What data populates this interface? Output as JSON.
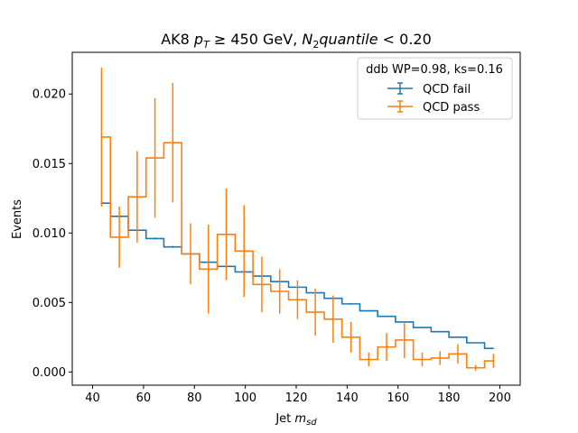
{
  "chart_data": {
    "type": "line",
    "drawstyle": "steps-mid",
    "title_prefix": "AK8 ",
    "title_pt": "p",
    "title_pt_sub": "T",
    "title_middle": " ≥ 450 GeV, ",
    "title_n": "N",
    "title_n_sub": "2",
    "title_quantile": "quantile",
    "title_suffix": " < 0.20",
    "xlabel_main": "Jet ",
    "xlabel_var": "m",
    "xlabel_sub": "sd",
    "ylabel": "Events",
    "xlim": [
      32.0,
      208.0
    ],
    "ylim": [
      -0.00095,
      0.023
    ],
    "xticks": [
      40,
      60,
      80,
      100,
      120,
      140,
      160,
      180,
      200
    ],
    "xtick_labels": [
      "40",
      "60",
      "80",
      "100",
      "120",
      "140",
      "160",
      "180",
      "200"
    ],
    "yticks": [
      0.0,
      0.005,
      0.01,
      0.015,
      0.02
    ],
    "ytick_labels": [
      "0.000",
      "0.005",
      "0.010",
      "0.015",
      "0.020"
    ],
    "legend": {
      "title": "ddb WP=0.98, ks=0.16",
      "placement": "upper right"
    },
    "x": [
      43.5,
      50.5,
      57.5,
      64.5,
      71.5,
      78.5,
      85.5,
      92.5,
      99.5,
      106.5,
      113.5,
      120.5,
      127.5,
      134.5,
      141.5,
      148.5,
      155.5,
      162.5,
      169.5,
      176.5,
      183.5,
      190.5,
      197.5
    ],
    "series": [
      {
        "name": "QCD fail",
        "color": "#1f77b4",
        "values": [
          0.01215,
          0.0112,
          0.0102,
          0.0096,
          0.009,
          0.0085,
          0.0079,
          0.0076,
          0.0072,
          0.0069,
          0.0065,
          0.0061,
          0.0057,
          0.0053,
          0.0049,
          0.0044,
          0.004,
          0.0036,
          0.0032,
          0.0029,
          0.0025,
          0.0021,
          0.0017
        ],
        "errors": [
          8e-05,
          8e-05,
          8e-05,
          7e-05,
          7e-05,
          7e-05,
          6e-05,
          6e-05,
          6e-05,
          6e-05,
          6e-05,
          5e-05,
          5e-05,
          5e-05,
          5e-05,
          5e-05,
          4e-05,
          4e-05,
          4e-05,
          4e-05,
          4e-05,
          3e-05,
          3e-05
        ]
      },
      {
        "name": "QCD pass",
        "color": "#ff7f0e",
        "values": [
          0.0169,
          0.0097,
          0.0126,
          0.0154,
          0.0165,
          0.0085,
          0.0074,
          0.0099,
          0.0087,
          0.0063,
          0.0058,
          0.0052,
          0.0043,
          0.0038,
          0.0025,
          0.0009,
          0.0018,
          0.0023,
          0.0009,
          0.001,
          0.0013,
          0.0003,
          0.0008
        ],
        "errors": [
          0.005,
          0.0022,
          0.0033,
          0.0043,
          0.0043,
          0.0022,
          0.0032,
          0.0033,
          0.0033,
          0.002,
          0.0016,
          0.0014,
          0.0017,
          0.0017,
          0.0011,
          0.0005,
          0.001,
          0.0013,
          0.0005,
          0.0005,
          0.0007,
          0.0002,
          0.0005
        ]
      }
    ]
  }
}
